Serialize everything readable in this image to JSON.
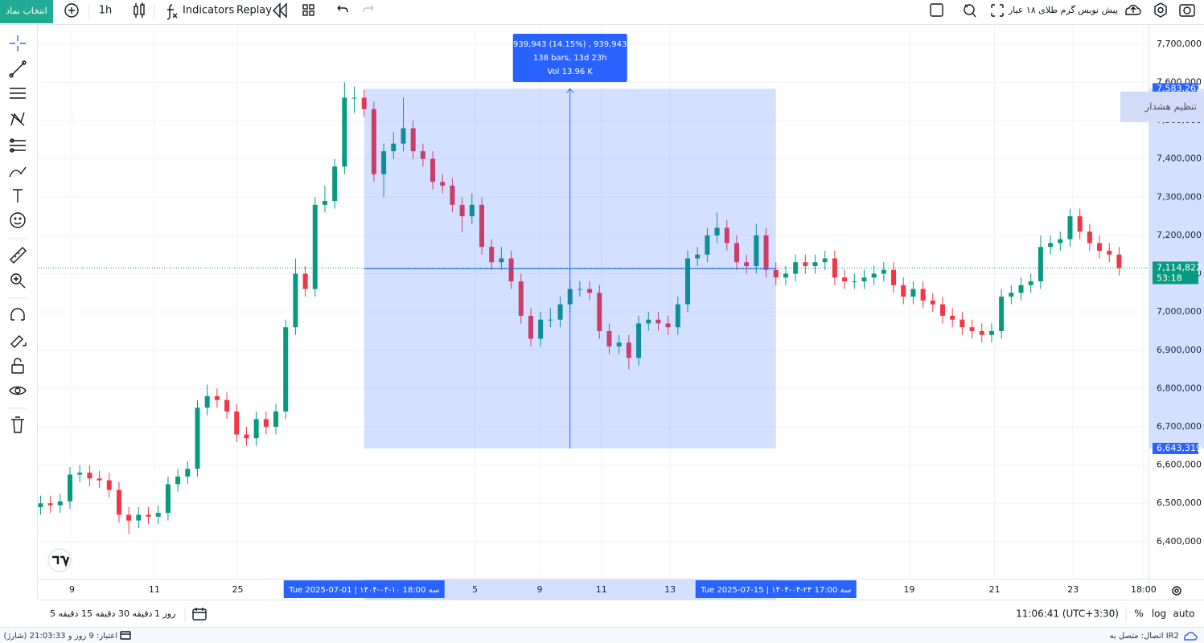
{
  "toolbar": {
    "symbol_button": "انتخاب نماد",
    "interval": "1h",
    "indicators": "Indicators",
    "replay": "Replay",
    "symbol": "پیش نویس گرم طلای ۱۸ عیار",
    "alert_popup": "تنظیم هشدار"
  },
  "chart_data": {
    "type": "candlestick",
    "up_color": "#089981",
    "down_color": "#f23645",
    "grid": true,
    "xlim": [
      -0.2,
      113.0
    ],
    "ylim": [
      6303000,
      7748000
    ],
    "xticks": [
      {
        "value": 3.2,
        "label": "9"
      },
      {
        "value": 11.6,
        "label": "11"
      },
      {
        "value": 20.1,
        "label": "25"
      },
      {
        "value": 44.3,
        "label": "5"
      },
      {
        "value": 50.9,
        "label": "9"
      },
      {
        "value": 57.2,
        "label": "11"
      },
      {
        "value": 64.2,
        "label": "13"
      },
      {
        "value": 88.6,
        "label": "19"
      },
      {
        "value": 97.3,
        "label": "21"
      },
      {
        "value": 105.3,
        "label": "23"
      },
      {
        "value": 112.5,
        "label": "18:00"
      }
    ],
    "yticks": [
      {
        "value": 6400000,
        "label": "6,400,000"
      },
      {
        "value": 6500000,
        "label": "6,500,000"
      },
      {
        "value": 6600000,
        "label": "6,600,000"
      },
      {
        "value": 6700000,
        "label": "6,700,000"
      },
      {
        "value": 6800000,
        "label": "6,800,000"
      },
      {
        "value": 6900000,
        "label": "6,900,000"
      },
      {
        "value": 7000000,
        "label": "7,000,000"
      },
      {
        "value": 7100000,
        "label": "7,100,000"
      },
      {
        "value": 7200000,
        "label": "7,200,000"
      },
      {
        "value": 7300000,
        "label": "7,300,000"
      },
      {
        "value": 7400000,
        "label": "7,400,000"
      },
      {
        "value": 7500000,
        "label": "7,500,000"
      },
      {
        "value": 7600000,
        "label": "7,600,000"
      },
      {
        "value": 7700000,
        "label": "7,700,000"
      }
    ],
    "x": [
      0,
      1,
      2,
      3,
      4,
      5,
      6,
      7,
      8,
      9,
      10,
      11,
      12,
      13,
      14,
      15,
      16,
      17,
      18,
      19,
      20,
      21,
      22,
      23,
      24,
      25,
      26,
      27,
      28,
      29,
      30,
      31,
      32,
      33,
      34,
      35,
      36,
      37,
      38,
      39,
      40,
      41,
      42,
      43,
      44,
      45,
      46,
      47,
      48,
      49,
      50,
      51,
      52,
      53,
      54,
      55,
      56,
      57,
      58,
      59,
      60,
      61,
      62,
      63,
      64,
      65,
      66,
      67,
      68,
      69,
      70,
      71,
      72,
      73,
      74,
      75,
      76,
      77,
      78,
      79,
      80,
      81,
      82,
      83,
      84,
      85,
      86,
      87,
      88,
      89,
      90,
      91,
      92,
      93,
      94,
      95,
      96,
      97,
      98,
      99,
      100,
      101,
      102,
      103,
      104,
      105,
      106,
      107,
      108,
      109,
      110
    ],
    "open": [
      6490000,
      6500000,
      6495000,
      6505000,
      6575000,
      6580000,
      6565000,
      6560000,
      6535000,
      6470000,
      6455000,
      6470000,
      6465000,
      6475000,
      6550000,
      6570000,
      6590000,
      6750000,
      6780000,
      6770000,
      6740000,
      6680000,
      6670000,
      6720000,
      6700000,
      6740000,
      6960000,
      7100000,
      7060000,
      7280000,
      7290000,
      7380000,
      7560000,
      7560000,
      7530000,
      7360000,
      7420000,
      7440000,
      7480000,
      7420000,
      7400000,
      7340000,
      7330000,
      7280000,
      7250000,
      7280000,
      7170000,
      7130000,
      7140000,
      7080000,
      6990000,
      6930000,
      6980000,
      6980000,
      7020000,
      7060000,
      7060000,
      7050000,
      6950000,
      6910000,
      6920000,
      6880000,
      6970000,
      6980000,
      6970000,
      6960000,
      7020000,
      7140000,
      7150000,
      7200000,
      7220000,
      7180000,
      7130000,
      7120000,
      7200000,
      7110000,
      7090000,
      7100000,
      7130000,
      7120000,
      7130000,
      7140000,
      7090000,
      7080000,
      7080000,
      7090000,
      7100000,
      7110000,
      7070000,
      7040000,
      7060000,
      7030000,
      7020000,
      6990000,
      6980000,
      6960000,
      6950000,
      6940000,
      6950000,
      7040000,
      7050000,
      7070000,
      7080000,
      7170000,
      7180000,
      7190000,
      7250000,
      7210000,
      7180000,
      7160000,
      7150000
    ],
    "high": [
      6520000,
      6520000,
      6525000,
      6595000,
      6600000,
      6600000,
      6585000,
      6580000,
      6555000,
      6490000,
      6490000,
      6490000,
      6495000,
      6570000,
      6590000,
      6610000,
      6770000,
      6810000,
      6800000,
      6790000,
      6760000,
      6700000,
      6740000,
      6740000,
      6760000,
      6980000,
      7140000,
      7120000,
      7300000,
      7330000,
      7400000,
      7600000,
      7590000,
      7580000,
      7550000,
      7440000,
      7470000,
      7560000,
      7500000,
      7440000,
      7420000,
      7360000,
      7350000,
      7300000,
      7310000,
      7300000,
      7190000,
      7170000,
      7160000,
      7100000,
      7010000,
      7000000,
      7010000,
      7040000,
      7080000,
      7080000,
      7080000,
      7070000,
      6970000,
      6940000,
      6940000,
      6990000,
      7000000,
      7000000,
      6990000,
      7040000,
      7160000,
      7170000,
      7220000,
      7260000,
      7240000,
      7200000,
      7150000,
      7230000,
      7220000,
      7130000,
      7120000,
      7150000,
      7150000,
      7150000,
      7160000,
      7160000,
      7110000,
      7100000,
      7110000,
      7120000,
      7130000,
      7130000,
      7090000,
      7080000,
      7080000,
      7050000,
      7040000,
      7010000,
      7000000,
      6980000,
      6970000,
      6970000,
      7060000,
      7070000,
      7090000,
      7100000,
      7200000,
      7200000,
      7210000,
      7270000,
      7270000,
      7230000,
      7200000,
      7180000,
      7170000
    ],
    "low": [
      6470000,
      6475000,
      6475000,
      6485000,
      6555000,
      6545000,
      6540000,
      6515000,
      6450000,
      6420000,
      6435000,
      6445000,
      6445000,
      6455000,
      6530000,
      6550000,
      6570000,
      6730000,
      6750000,
      6720000,
      6660000,
      6650000,
      6650000,
      6680000,
      6680000,
      6720000,
      6940000,
      7040000,
      7040000,
      7260000,
      7270000,
      7360000,
      7520000,
      7510000,
      7340000,
      7300000,
      7400000,
      7420000,
      7400000,
      7380000,
      7320000,
      7310000,
      7260000,
      7210000,
      7230000,
      7150000,
      7110000,
      7110000,
      7060000,
      6970000,
      6910000,
      6910000,
      6960000,
      6960000,
      7000000,
      7040000,
      7030000,
      6930000,
      6890000,
      6890000,
      6850000,
      6860000,
      6950000,
      6950000,
      6940000,
      6940000,
      7000000,
      7120000,
      7130000,
      7180000,
      7160000,
      7110000,
      7100000,
      7100000,
      7090000,
      7070000,
      7070000,
      7080000,
      7100000,
      7100000,
      7110000,
      7070000,
      7060000,
      7060000,
      7060000,
      7070000,
      7080000,
      7050000,
      7020000,
      7020000,
      7010000,
      7000000,
      6970000,
      6960000,
      6940000,
      6930000,
      6920000,
      6920000,
      6930000,
      7020000,
      7030000,
      7050000,
      7060000,
      7150000,
      7160000,
      7170000,
      7190000,
      7160000,
      7140000,
      7130000,
      7095000
    ],
    "close": [
      6500000,
      6495000,
      6505000,
      6575000,
      6580000,
      6565000,
      6560000,
      6535000,
      6470000,
      6455000,
      6470000,
      6465000,
      6475000,
      6550000,
      6570000,
      6590000,
      6750000,
      6780000,
      6770000,
      6740000,
      6680000,
      6670000,
      6720000,
      6700000,
      6740000,
      6960000,
      7100000,
      7060000,
      7280000,
      7290000,
      7380000,
      7560000,
      7560000,
      7530000,
      7360000,
      7420000,
      7440000,
      7480000,
      7420000,
      7400000,
      7340000,
      7330000,
      7280000,
      7250000,
      7280000,
      7170000,
      7130000,
      7140000,
      7080000,
      6990000,
      6930000,
      6980000,
      6980000,
      7020000,
      7060000,
      7060000,
      7050000,
      6950000,
      6910000,
      6920000,
      6880000,
      6970000,
      6980000,
      6970000,
      6960000,
      7020000,
      7140000,
      7150000,
      7200000,
      7220000,
      7180000,
      7130000,
      7120000,
      7200000,
      7110000,
      7090000,
      7100000,
      7130000,
      7120000,
      7130000,
      7140000,
      7090000,
      7080000,
      7080000,
      7090000,
      7100000,
      7110000,
      7070000,
      7040000,
      7060000,
      7030000,
      7020000,
      6990000,
      6980000,
      6960000,
      6950000,
      6940000,
      6950000,
      7040000,
      7050000,
      7070000,
      7080000,
      7170000,
      7180000,
      7190000,
      7250000,
      7210000,
      7180000,
      7160000,
      7150000,
      7114822
    ],
    "last_price": {
      "value": 7114822,
      "label": "7,114,822",
      "countdown": "53:18",
      "color": "#089981"
    },
    "measure": {
      "color": "#2962ff",
      "start": {
        "value": 33,
        "label": "Tue 2025-07-01 | ۱۴۰۴-۰۴-۱۰ 18:00 سه"
      },
      "end": {
        "value": 75,
        "label": "Tue 2025-07-15 | ۱۴۰۴-۰۴-۲۴ 17:00 سه"
      },
      "high": {
        "value": 7583262,
        "label": "7,583,262"
      },
      "low": {
        "value": 6643319,
        "label": "6,643,319"
      },
      "tooltip": [
        "939,943 (14.15%) , 939,943",
        "138 bars, 13d 23h",
        "Vol 13.96 K"
      ]
    }
  },
  "bottom_bar": {
    "timeframes": [
      "5 دقیقه",
      "15 دقیقه",
      "30 دقیقه",
      "1 روز"
    ],
    "clock": "11:06:41 (UTC+3:30)",
    "percent": "%",
    "log": "log",
    "auto": "auto"
  },
  "status_bar": {
    "credit": "اعتبار: 9 روز و 21:03:33 (شارژ)",
    "connection": "اتصال: متصل به IR2"
  }
}
